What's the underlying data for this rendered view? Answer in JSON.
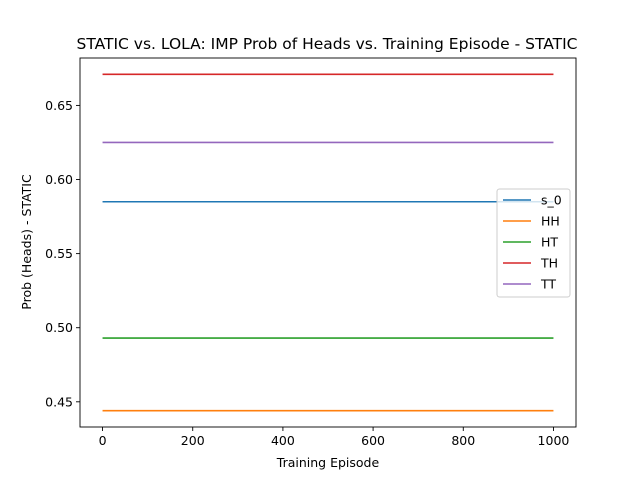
{
  "chart_data": {
    "type": "line",
    "title": "STATIC vs. LOLA: IMP Prob of Heads vs. Training Episode - STATIC",
    "xlabel": "Training Episode",
    "ylabel": "Prob (Heads) - STATIC",
    "xlim": [
      -50,
      1050
    ],
    "ylim": [
      0.433,
      0.682
    ],
    "xticks": [
      0,
      200,
      400,
      600,
      800,
      1000
    ],
    "yticks": [
      0.45,
      0.5,
      0.55,
      0.6,
      0.65
    ],
    "xtick_labels": [
      "0",
      "200",
      "400",
      "600",
      "800",
      "1000"
    ],
    "ytick_labels": [
      "0.45",
      "0.50",
      "0.55",
      "0.60",
      "0.65"
    ],
    "grid": false,
    "legend_position": "right",
    "series": [
      {
        "name": "s_0",
        "color": "#1f77b4",
        "x": [
          0,
          1000
        ],
        "y": [
          0.585,
          0.585
        ]
      },
      {
        "name": "HH",
        "color": "#ff7f0e",
        "x": [
          0,
          1000
        ],
        "y": [
          0.444,
          0.444
        ]
      },
      {
        "name": "HT",
        "color": "#2ca02c",
        "x": [
          0,
          1000
        ],
        "y": [
          0.493,
          0.493
        ]
      },
      {
        "name": "TH",
        "color": "#d62728",
        "x": [
          0,
          1000
        ],
        "y": [
          0.671,
          0.671
        ]
      },
      {
        "name": "TT",
        "color": "#9467bd",
        "x": [
          0,
          1000
        ],
        "y": [
          0.625,
          0.625
        ]
      }
    ]
  }
}
